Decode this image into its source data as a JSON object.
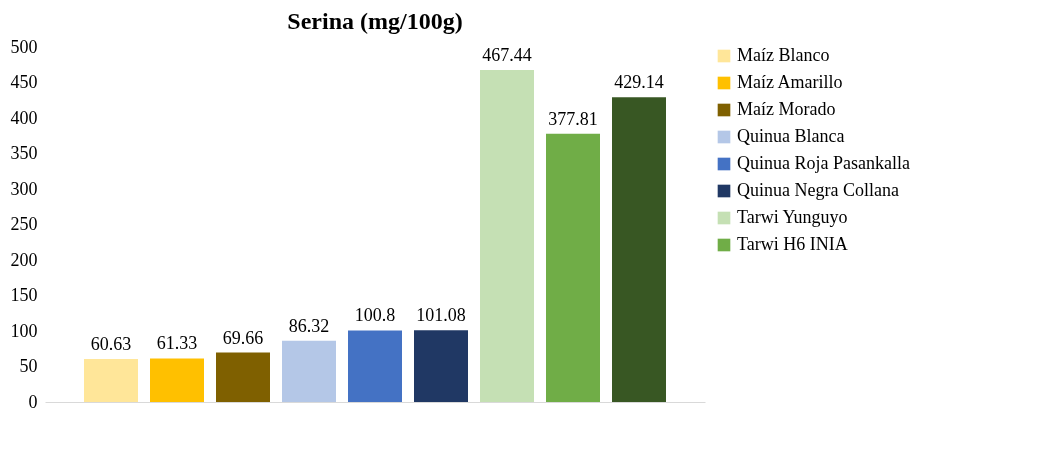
{
  "chart_data": {
    "type": "bar",
    "title": "Serina (mg/100g)",
    "categories": [
      null
    ],
    "series": [
      {
        "name": "Maíz Blanco",
        "color": "#ffe699",
        "values": [
          60.63
        ]
      },
      {
        "name": "Maíz Amarillo",
        "color": "#ffc000",
        "values": [
          61.33
        ]
      },
      {
        "name": "Maíz Morado",
        "color": "#7f6000",
        "values": [
          69.66
        ]
      },
      {
        "name": "Quinua Blanca",
        "color": "#b4c7e7",
        "values": [
          86.32
        ]
      },
      {
        "name": "Quinua Roja Pasankalla",
        "color": "#4472c4",
        "values": [
          100.8
        ]
      },
      {
        "name": "Quinua Negra Collana",
        "color": "#203864",
        "values": [
          101.08
        ]
      },
      {
        "name": "Tarwi Yunguyo",
        "color": "#c5e0b4",
        "values": [
          467.44
        ]
      },
      {
        "name": "Tarwi H6 INIA",
        "color": "#70ad47",
        "values": [
          377.81
        ]
      },
      {
        "color": "#385723",
        "values": [
          429.14
        ]
      }
    ],
    "ylim": [
      0,
      500
    ],
    "yticks": [
      0,
      50,
      100,
      150,
      200,
      250,
      300,
      350,
      400,
      450,
      500
    ],
    "data_labels": true,
    "grid": false,
    "legend": "right"
  }
}
